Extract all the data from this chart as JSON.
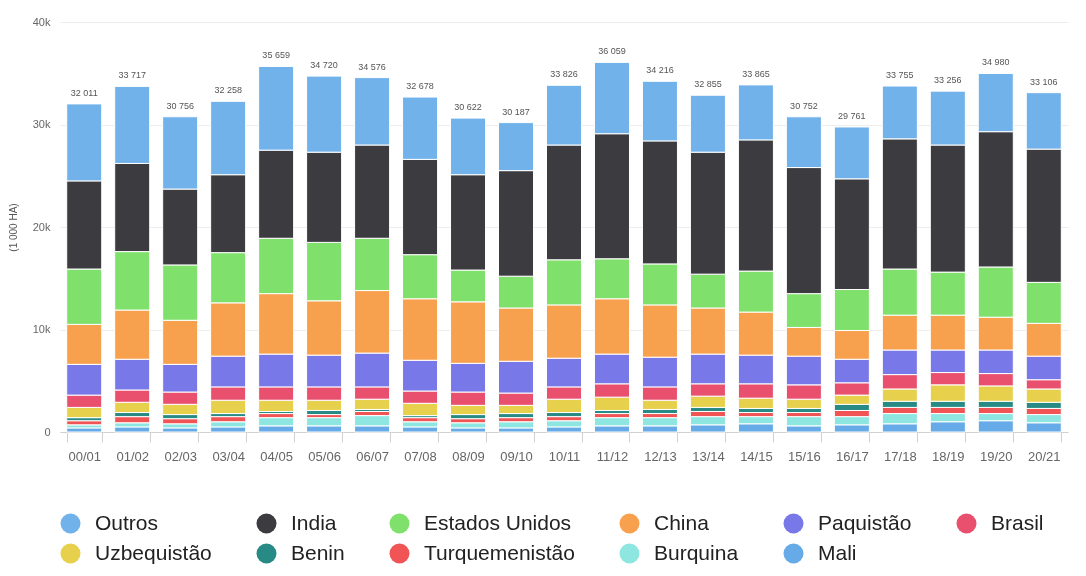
{
  "chart_data": {
    "type": "bar",
    "stacked": true,
    "ylabel": "(1 000 HA)",
    "categories": [
      "00/01",
      "01/02",
      "02/03",
      "03/04",
      "04/05",
      "05/06",
      "06/07",
      "07/08",
      "08/09",
      "09/10",
      "10/11",
      "11/12",
      "12/13",
      "13/14",
      "14/15",
      "15/16",
      "16/17",
      "17/18",
      "18/19",
      "19/20",
      "20/21"
    ],
    "series": [
      {
        "name": "Mali",
        "color": "#66aae8",
        "values": [
          400,
          500,
          400,
          500,
          600,
          600,
          600,
          500,
          400,
          400,
          500,
          600,
          600,
          700,
          800,
          600,
          700,
          800,
          1000,
          1100,
          900
        ]
      },
      {
        "name": "Burquina",
        "color": "#8ee6e0",
        "values": [
          300,
          400,
          400,
          500,
          800,
          800,
          1000,
          500,
          500,
          600,
          600,
          800,
          800,
          800,
          700,
          900,
          800,
          1000,
          800,
          700,
          800
        ]
      },
      {
        "name": "Turquemenistão",
        "color": "#f05454",
        "values": [
          400,
          600,
          500,
          500,
          400,
          300,
          400,
          400,
          400,
          400,
          400,
          400,
          400,
          500,
          400,
          400,
          600,
          600,
          600,
          600,
          600
        ]
      },
      {
        "name": "Benin",
        "color": "#288a84",
        "values": [
          300,
          400,
          400,
          300,
          200,
          400,
          200,
          200,
          400,
          400,
          400,
          300,
          400,
          400,
          400,
          400,
          600,
          600,
          600,
          600,
          600
        ]
      },
      {
        "name": "Uzbequistão",
        "color": "#e6d04c",
        "values": [
          1000,
          1000,
          1000,
          1300,
          1100,
          1000,
          1000,
          1200,
          900,
          800,
          1300,
          1300,
          900,
          1100,
          1000,
          900,
          900,
          1200,
          1600,
          1500,
          1300
        ]
      },
      {
        "name": "Brasil",
        "color": "#e8506e",
        "values": [
          1200,
          1200,
          1200,
          1300,
          1300,
          1300,
          1200,
          1200,
          1300,
          1200,
          1200,
          1300,
          1300,
          1200,
          1400,
          1400,
          1200,
          1400,
          1200,
          1200,
          900
        ]
      },
      {
        "name": "Paquistão",
        "color": "#7878e8",
        "values": [
          3000,
          3000,
          2700,
          3000,
          3200,
          3100,
          3300,
          3000,
          2800,
          3100,
          2800,
          2900,
          2900,
          2900,
          2800,
          2800,
          2300,
          2400,
          2200,
          2300,
          2300
        ]
      },
      {
        "name": "China",
        "color": "#f7a04e",
        "values": [
          3900,
          4800,
          4300,
          5200,
          5900,
          5300,
          6100,
          6000,
          6000,
          5200,
          5200,
          5400,
          5100,
          4500,
          4200,
          2800,
          2800,
          3400,
          3400,
          3200,
          3200
        ]
      },
      {
        "name": "Estados Unidos",
        "color": "#80e06c",
        "values": [
          5400,
          5700,
          5400,
          4900,
          5400,
          5700,
          5100,
          4300,
          3100,
          3100,
          4400,
          3900,
          4000,
          3300,
          4000,
          3300,
          4000,
          4500,
          4200,
          4900,
          4000
        ]
      },
      {
        "name": "India",
        "color": "#3c3c40",
        "values": [
          8600,
          8600,
          7400,
          7600,
          8600,
          8800,
          9100,
          9300,
          9300,
          10300,
          11200,
          12200,
          12000,
          11900,
          12800,
          12300,
          10800,
          12700,
          12400,
          13200,
          13000
        ]
      },
      {
        "name": "Outros",
        "color": "#72b2ea",
        "values": [
          7511,
          7517,
          7056,
          7158,
          8159,
          7420,
          6576,
          6078,
          5522,
          4687,
          5826,
          6959,
          5816,
          5555,
          5365,
          4952,
          5061,
          5155,
          5256,
          5680,
          5506
        ]
      }
    ],
    "totals": [
      "32 011",
      "33 717",
      "30 756",
      "32 258",
      "35 659",
      "34 720",
      "34 576",
      "32 678",
      "30 622",
      "30 187",
      "33 826",
      "36 059",
      "34 216",
      "32 855",
      "33 865",
      "30 752",
      "29 761",
      "33 755",
      "33 256",
      "34 980",
      "33 106"
    ],
    "ylim": [
      0,
      40000
    ],
    "yticks": [
      0,
      {
        "value": 10000,
        "label": "10k"
      },
      {
        "value": 20000,
        "label": "20k"
      },
      {
        "value": 30000,
        "label": "30k"
      },
      {
        "value": 40000,
        "label": "40k"
      }
    ],
    "grid": "y",
    "legend": "bottom"
  }
}
